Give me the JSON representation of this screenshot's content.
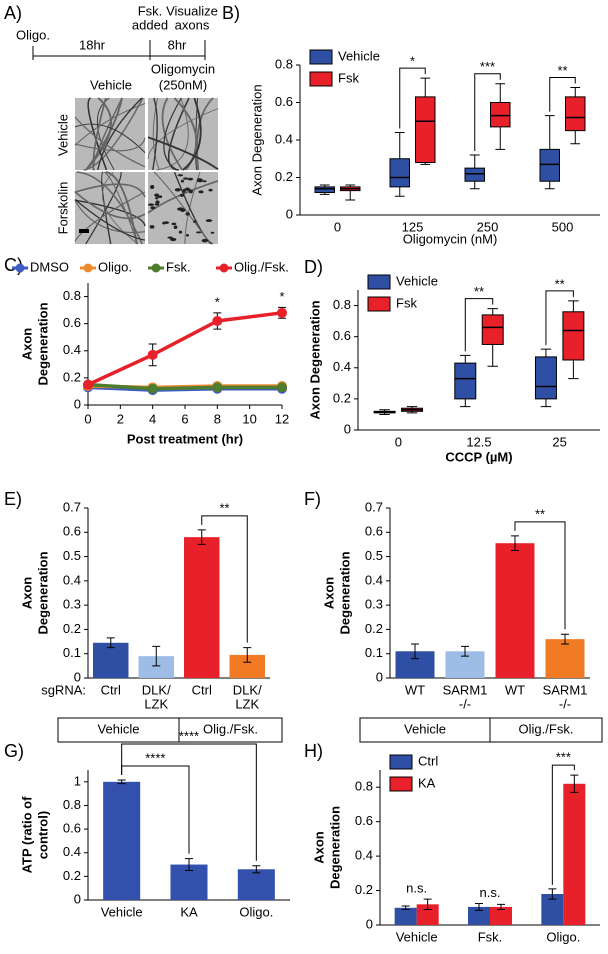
{
  "panel_a": {
    "label": "A)",
    "timeline": {
      "start": "Oligo.",
      "interval_1": "18hr",
      "event": [
        "Fsk.",
        "added"
      ],
      "interval_2": "8hr",
      "end": [
        "Visualize",
        "axons"
      ]
    },
    "columns": [
      "Vehicle",
      [
        "Oligomycin",
        "(250nM)"
      ]
    ],
    "rows": [
      "Vehicle",
      "Forskolin"
    ]
  },
  "chart_data": [
    {
      "type": "box",
      "label": "B)",
      "ylabel": "Axon Degeneration",
      "xlabel": "Oligomycin (nM)",
      "categories": [
        "0",
        "125",
        "250",
        "500"
      ],
      "series": [
        {
          "name": "Vehicle",
          "color": "#2e4fa3",
          "min": [
            0.11,
            0.1,
            0.14,
            0.14
          ],
          "q1": [
            0.12,
            0.15,
            0.18,
            0.18
          ],
          "median": [
            0.14,
            0.2,
            0.22,
            0.27
          ],
          "q3": [
            0.15,
            0.3,
            0.25,
            0.35
          ],
          "max": [
            0.16,
            0.44,
            0.32,
            0.53
          ]
        },
        {
          "name": "Fsk",
          "color": "#e8202a",
          "min": [
            0.08,
            0.27,
            0.35,
            0.38
          ],
          "q1": [
            0.13,
            0.28,
            0.47,
            0.45
          ],
          "median": [
            0.14,
            0.5,
            0.53,
            0.52
          ],
          "q3": [
            0.15,
            0.63,
            0.6,
            0.63
          ],
          "max": [
            0.16,
            0.73,
            0.7,
            0.68
          ]
        }
      ],
      "ylim": [
        0,
        0.8
      ],
      "yticks": [
        0,
        0.2,
        0.4,
        0.6,
        0.8
      ],
      "legend": "upper left",
      "significance": [
        null,
        "*",
        "***",
        "**"
      ]
    },
    {
      "type": "line",
      "label": "C)",
      "ylabel": [
        "Axon",
        "Degeneration"
      ],
      "xlabel": "Post treatment (hr)",
      "x": [
        0,
        4,
        8,
        12
      ],
      "xlim": [
        0,
        12
      ],
      "xticks": [
        0,
        2,
        4,
        6,
        8,
        10,
        12
      ],
      "ylim": [
        0,
        0.9
      ],
      "yticks": [
        0,
        0.2,
        0.4,
        0.6,
        0.8
      ],
      "legend": "top",
      "series": [
        {
          "name": "DMSO",
          "color": "#3d5bc4",
          "values": [
            0.13,
            0.11,
            0.12,
            0.12
          ],
          "errors": [
            0.01,
            0.01,
            0.01,
            0.01
          ]
        },
        {
          "name": "Oligo.",
          "color": "#f08a2c",
          "values": [
            0.14,
            0.13,
            0.14,
            0.14
          ],
          "errors": [
            0.01,
            0.02,
            0.02,
            0.02
          ]
        },
        {
          "name": "Fsk.",
          "color": "#4e7d2f",
          "values": [
            0.15,
            0.12,
            0.13,
            0.13
          ],
          "errors": [
            0.01,
            0.01,
            0.01,
            0.01
          ]
        },
        {
          "name": "Olig./Fsk.",
          "color": "#e8202a",
          "values": [
            0.15,
            0.37,
            0.62,
            0.68
          ],
          "errors": [
            0.02,
            0.08,
            0.06,
            0.04
          ],
          "significance": [
            null,
            null,
            "*",
            "*"
          ]
        }
      ]
    },
    {
      "type": "box",
      "label": "D)",
      "ylabel": "Axon Degeneration",
      "xlabel": "CCCP (µM)",
      "categories": [
        "0",
        "12.5",
        "25"
      ],
      "series": [
        {
          "name": "Vehicle",
          "color": "#2e4fa3",
          "min": [
            0.1,
            0.15,
            0.15
          ],
          "q1": [
            0.11,
            0.2,
            0.2
          ],
          "median": [
            0.115,
            0.33,
            0.28
          ],
          "q3": [
            0.12,
            0.43,
            0.47
          ],
          "max": [
            0.13,
            0.48,
            0.52
          ]
        },
        {
          "name": "Fsk",
          "color": "#e8202a",
          "min": [
            0.11,
            0.41,
            0.33
          ],
          "q1": [
            0.12,
            0.55,
            0.45
          ],
          "median": [
            0.13,
            0.66,
            0.64
          ],
          "q3": [
            0.14,
            0.74,
            0.76
          ],
          "max": [
            0.15,
            0.78,
            0.83
          ]
        }
      ],
      "ylim": [
        0,
        0.9
      ],
      "yticks": [
        0,
        0.2,
        0.4,
        0.6,
        0.8
      ],
      "legend": "upper left",
      "significance": [
        null,
        "**",
        "**"
      ]
    },
    {
      "type": "bar",
      "label": "E)",
      "ylabel": [
        "Axon",
        "Degeneration"
      ],
      "categories": [
        "Ctrl",
        [
          "DLK/",
          "LZK"
        ],
        "Ctrl",
        [
          "DLK/",
          "LZK"
        ]
      ],
      "values": [
        0.145,
        0.09,
        0.58,
        0.095
      ],
      "errors": [
        0.02,
        0.04,
        0.03,
        0.03
      ],
      "colors": [
        "#2e4fa3",
        "#9dbde6",
        "#e8202a",
        "#f07b24"
      ],
      "ylim": [
        0,
        0.7
      ],
      "yticks": [
        0,
        0.1,
        0.2,
        0.3,
        0.4,
        0.5,
        0.6,
        0.7
      ],
      "row_label": "sgRNA:",
      "groups": [
        "Vehicle",
        "Olig./Fsk."
      ],
      "brackets": [
        {
          "label": "**",
          "between": [
            2,
            3
          ]
        }
      ]
    },
    {
      "type": "bar",
      "label": "F)",
      "ylabel": [
        "Axon",
        "Degeneration"
      ],
      "categories": [
        "WT",
        [
          "SARM1",
          "-/-"
        ],
        "WT",
        [
          "SARM1",
          "-/-"
        ]
      ],
      "values": [
        0.11,
        0.11,
        0.555,
        0.16
      ],
      "errors": [
        0.03,
        0.02,
        0.03,
        0.02
      ],
      "colors": [
        "#2e4fa3",
        "#9dbde6",
        "#e8202a",
        "#f07b24"
      ],
      "ylim": [
        0,
        0.7
      ],
      "yticks": [
        0,
        0.1,
        0.2,
        0.3,
        0.4,
        0.5,
        0.6,
        0.7
      ],
      "groups": [
        "Vehicle",
        "Olig./Fsk."
      ],
      "brackets": [
        {
          "label": "**",
          "between": [
            2,
            3
          ]
        }
      ]
    },
    {
      "type": "bar",
      "label": "G)",
      "ylabel": [
        "ATP (ratio of",
        "control)"
      ],
      "categories": [
        "Vehicle",
        "KA",
        "Oligo."
      ],
      "values": [
        1,
        0.3,
        0.26
      ],
      "errors": [
        0.015,
        0.05,
        0.03
      ],
      "color": "#3450ad",
      "ylim": [
        0,
        1.1
      ],
      "yticks": [
        0,
        0.2,
        0.4,
        0.6,
        0.8,
        1
      ],
      "brackets": [
        {
          "label": "****",
          "between": [
            0,
            1
          ]
        },
        {
          "label": "****",
          "between": [
            0,
            2
          ]
        }
      ]
    },
    {
      "type": "bar",
      "label": "H)",
      "ylabel": [
        "Axon",
        "Degeneration"
      ],
      "categories": [
        "Vehicle",
        "Fsk.",
        "Oligo."
      ],
      "series": [
        {
          "name": "Ctrl",
          "color": "#2e4fa3",
          "values": [
            0.1,
            0.105,
            0.18
          ],
          "errors": [
            0.01,
            0.02,
            0.03
          ]
        },
        {
          "name": "KA",
          "color": "#e8202a",
          "values": [
            0.12,
            0.105,
            0.82
          ],
          "errors": [
            0.03,
            0.015,
            0.05
          ]
        }
      ],
      "ylim": [
        0,
        0.9
      ],
      "yticks": [
        0,
        0.2,
        0.4,
        0.6,
        0.8
      ],
      "legend": "upper left",
      "significance": [
        {
          "label": "n.s."
        },
        {
          "label": "n.s."
        },
        {
          "label": "***",
          "bracket": true
        }
      ]
    }
  ]
}
